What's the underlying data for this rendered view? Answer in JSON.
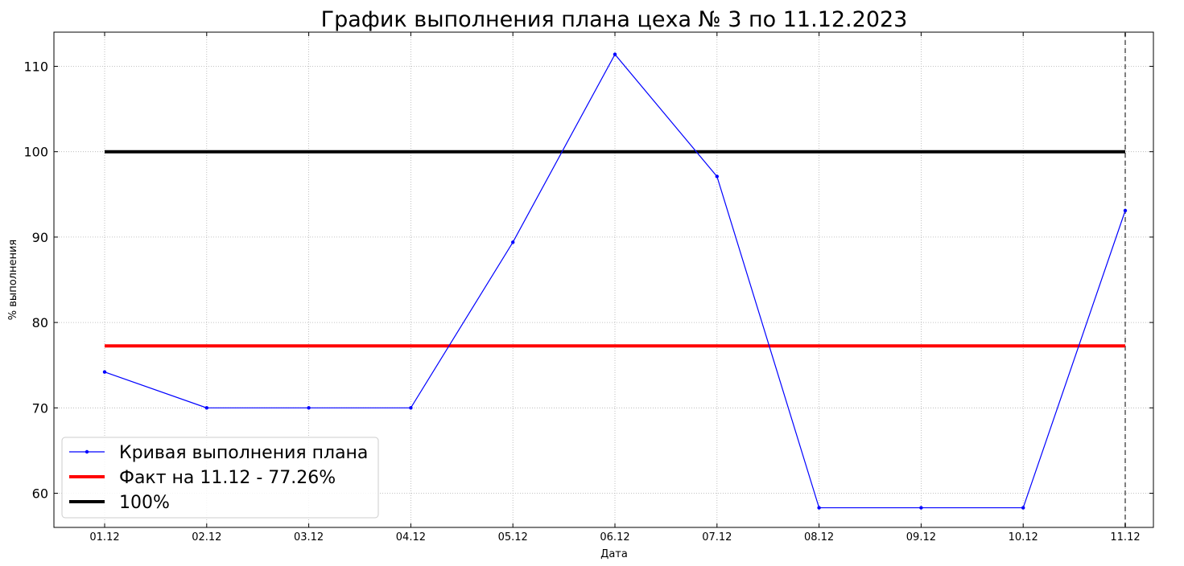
{
  "chart_data": {
    "type": "line",
    "title": "График выполнения плана цеха № 3 по 11.12.2023",
    "xlabel": "Дата",
    "ylabel": "% выполнения",
    "categories": [
      "01.12",
      "02.12",
      "03.12",
      "04.12",
      "05.12",
      "06.12",
      "07.12",
      "08.12",
      "09.12",
      "10.12",
      "11.12"
    ],
    "ylim": [
      56,
      114
    ],
    "yticks": [
      60,
      70,
      80,
      90,
      100,
      110
    ],
    "grid": true,
    "legend_position": "lower-left",
    "series": [
      {
        "name": "Кривая выполнения плана",
        "kind": "line-with-markers",
        "color": "#0000ff",
        "values": [
          74.2,
          70.0,
          70.0,
          70.0,
          89.4,
          111.4,
          97.1,
          58.3,
          58.3,
          58.3,
          93.1
        ]
      },
      {
        "name": "Факт на 11.12 - 77.26%",
        "kind": "hline",
        "color": "#ff0000",
        "value": 77.26
      },
      {
        "name": "100%",
        "kind": "hline",
        "color": "#000000",
        "value": 100
      }
    ],
    "vline": {
      "category": "11.12",
      "color": "#808080",
      "style": "dashed"
    }
  }
}
